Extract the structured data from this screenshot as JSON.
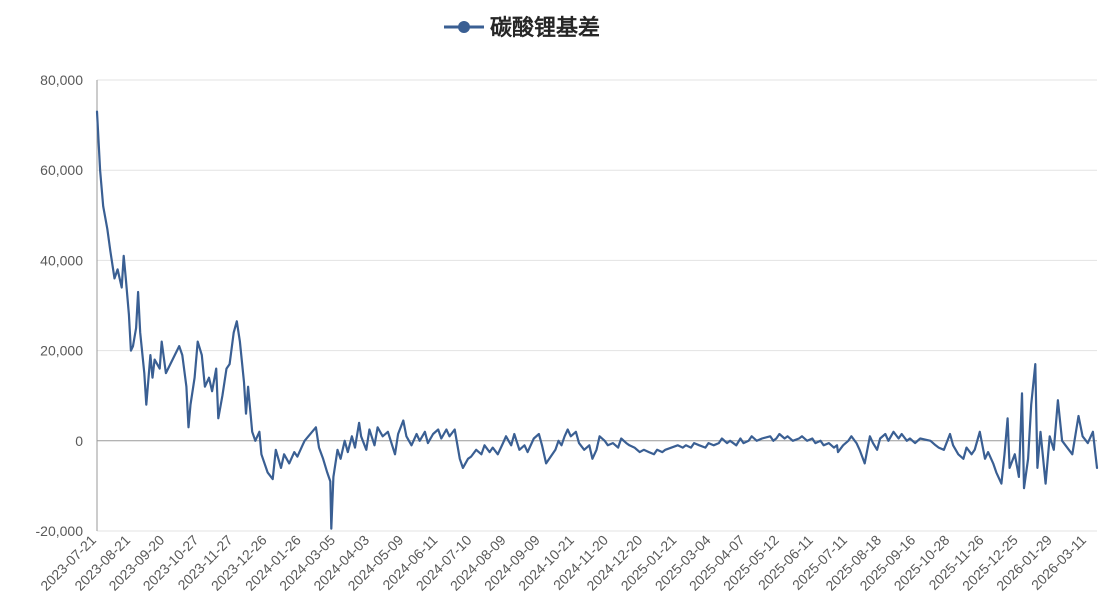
{
  "chart_data": {
    "type": "line",
    "title": "碳酸锂基差",
    "series": [
      {
        "name": "碳酸锂基差",
        "color": "#3a5f93",
        "points": [
          [
            "2023-07-21",
            73000
          ],
          [
            "2023-07-24",
            60000
          ],
          [
            "2023-07-27",
            52000
          ],
          [
            "2023-07-31",
            47000
          ],
          [
            "2023-08-03",
            42000
          ],
          [
            "2023-08-07",
            36000
          ],
          [
            "2023-08-10",
            38000
          ],
          [
            "2023-08-14",
            34000
          ],
          [
            "2023-08-16",
            41000
          ],
          [
            "2023-08-18",
            36000
          ],
          [
            "2023-08-21",
            28000
          ],
          [
            "2023-08-23",
            20000
          ],
          [
            "2023-08-25",
            21000
          ],
          [
            "2023-08-28",
            25000
          ],
          [
            "2023-08-30",
            33000
          ],
          [
            "2023-09-01",
            24000
          ],
          [
            "2023-09-05",
            15000
          ],
          [
            "2023-09-07",
            8000
          ],
          [
            "2023-09-11",
            19000
          ],
          [
            "2023-09-13",
            14000
          ],
          [
            "2023-09-15",
            18000
          ],
          [
            "2023-09-20",
            16000
          ],
          [
            "2023-09-22",
            22000
          ],
          [
            "2023-09-26",
            15000
          ],
          [
            "2023-10-09",
            21000
          ],
          [
            "2023-10-12",
            19000
          ],
          [
            "2023-10-16",
            12000
          ],
          [
            "2023-10-18",
            3000
          ],
          [
            "2023-10-20",
            8000
          ],
          [
            "2023-10-24",
            14000
          ],
          [
            "2023-10-27",
            22000
          ],
          [
            "2023-10-31",
            19000
          ],
          [
            "2023-11-03",
            12000
          ],
          [
            "2023-11-07",
            14000
          ],
          [
            "2023-11-10",
            11000
          ],
          [
            "2023-11-14",
            16000
          ],
          [
            "2023-11-16",
            5000
          ],
          [
            "2023-11-20",
            10000
          ],
          [
            "2023-11-24",
            16000
          ],
          [
            "2023-11-27",
            17000
          ],
          [
            "2023-12-01",
            24000
          ],
          [
            "2023-12-04",
            26500
          ],
          [
            "2023-12-07",
            22000
          ],
          [
            "2023-12-11",
            13000
          ],
          [
            "2023-12-13",
            6000
          ],
          [
            "2023-12-15",
            12000
          ],
          [
            "2023-12-19",
            2000
          ],
          [
            "2023-12-22",
            0
          ],
          [
            "2023-12-26",
            2000
          ],
          [
            "2023-12-28",
            -3000
          ],
          [
            "2024-01-03",
            -7000
          ],
          [
            "2024-01-08",
            -8500
          ],
          [
            "2024-01-11",
            -2000
          ],
          [
            "2024-01-16",
            -6000
          ],
          [
            "2024-01-19",
            -3000
          ],
          [
            "2024-01-24",
            -5000
          ],
          [
            "2024-01-29",
            -2500
          ],
          [
            "2024-02-01",
            -3500
          ],
          [
            "2024-02-06",
            -1000
          ],
          [
            "2024-02-08",
            0
          ],
          [
            "2024-02-19",
            3000
          ],
          [
            "2024-02-22",
            -1500
          ],
          [
            "2024-02-26",
            -4000
          ],
          [
            "2024-03-01",
            -7000
          ],
          [
            "2024-03-04",
            -9000
          ],
          [
            "2024-03-05",
            -19500
          ],
          [
            "2024-03-07",
            -8000
          ],
          [
            "2024-03-11",
            -2000
          ],
          [
            "2024-03-14",
            -4000
          ],
          [
            "2024-03-18",
            0
          ],
          [
            "2024-03-21",
            -2500
          ],
          [
            "2024-03-25",
            1000
          ],
          [
            "2024-03-28",
            -1500
          ],
          [
            "2024-04-01",
            4000
          ],
          [
            "2024-04-03",
            1000
          ],
          [
            "2024-04-08",
            -2000
          ],
          [
            "2024-04-11",
            2500
          ],
          [
            "2024-04-16",
            -1000
          ],
          [
            "2024-04-19",
            3000
          ],
          [
            "2024-04-24",
            1000
          ],
          [
            "2024-04-29",
            2000
          ],
          [
            "2024-05-06",
            -3000
          ],
          [
            "2024-05-09",
            1500
          ],
          [
            "2024-05-14",
            4500
          ],
          [
            "2024-05-17",
            1000
          ],
          [
            "2024-05-22",
            -1000
          ],
          [
            "2024-05-27",
            1500
          ],
          [
            "2024-05-30",
            0
          ],
          [
            "2024-06-04",
            2000
          ],
          [
            "2024-06-07",
            -500
          ],
          [
            "2024-06-12",
            1500
          ],
          [
            "2024-06-17",
            2500
          ],
          [
            "2024-06-20",
            500
          ],
          [
            "2024-06-25",
            2500
          ],
          [
            "2024-06-28",
            1000
          ],
          [
            "2024-07-03",
            2500
          ],
          [
            "2024-07-08",
            -4000
          ],
          [
            "2024-07-11",
            -6000
          ],
          [
            "2024-07-16",
            -4000
          ],
          [
            "2024-07-19",
            -3500
          ],
          [
            "2024-07-24",
            -2000
          ],
          [
            "2024-07-29",
            -3000
          ],
          [
            "2024-08-01",
            -1000
          ],
          [
            "2024-08-06",
            -2500
          ],
          [
            "2024-08-09",
            -1500
          ],
          [
            "2024-08-14",
            -3000
          ],
          [
            "2024-08-19",
            -500
          ],
          [
            "2024-08-22",
            1000
          ],
          [
            "2024-08-27",
            -1000
          ],
          [
            "2024-08-30",
            1500
          ],
          [
            "2024-09-04",
            -2000
          ],
          [
            "2024-09-09",
            -1000
          ],
          [
            "2024-09-12",
            -2500
          ],
          [
            "2024-09-18",
            500
          ],
          [
            "2024-09-23",
            1500
          ],
          [
            "2024-09-26",
            -1000
          ],
          [
            "2024-09-30",
            -5000
          ],
          [
            "2024-10-09",
            -2000
          ],
          [
            "2024-10-12",
            0
          ],
          [
            "2024-10-15",
            -1000
          ],
          [
            "2024-10-18",
            1000
          ],
          [
            "2024-10-21",
            2500
          ],
          [
            "2024-10-24",
            1000
          ],
          [
            "2024-10-29",
            2000
          ],
          [
            "2024-11-01",
            -500
          ],
          [
            "2024-11-06",
            -2000
          ],
          [
            "2024-11-11",
            -1000
          ],
          [
            "2024-11-14",
            -4000
          ],
          [
            "2024-11-18",
            -2000
          ],
          [
            "2024-11-21",
            1000
          ],
          [
            "2024-11-26",
            0
          ],
          [
            "2024-11-29",
            -1000
          ],
          [
            "2024-12-04",
            -500
          ],
          [
            "2024-12-09",
            -1500
          ],
          [
            "2024-12-12",
            500
          ],
          [
            "2024-12-17",
            -500
          ],
          [
            "2024-12-20",
            -1000
          ],
          [
            "2024-12-25",
            -1500
          ],
          [
            "2024-12-30",
            -2500
          ],
          [
            "2025-01-03",
            -2000
          ],
          [
            "2025-01-08",
            -2500
          ],
          [
            "2025-01-13",
            -3000
          ],
          [
            "2025-01-16",
            -2000
          ],
          [
            "2025-01-21",
            -2500
          ],
          [
            "2025-01-24",
            -2000
          ],
          [
            "2025-02-05",
            -1000
          ],
          [
            "2025-02-10",
            -1500
          ],
          [
            "2025-02-13",
            -1000
          ],
          [
            "2025-02-18",
            -1500
          ],
          [
            "2025-02-21",
            -500
          ],
          [
            "2025-02-26",
            -1000
          ],
          [
            "2025-03-04",
            -1500
          ],
          [
            "2025-03-07",
            -500
          ],
          [
            "2025-03-12",
            -1000
          ],
          [
            "2025-03-17",
            -500
          ],
          [
            "2025-03-20",
            500
          ],
          [
            "2025-03-25",
            -500
          ],
          [
            "2025-03-28",
            0
          ],
          [
            "2025-04-03",
            -1000
          ],
          [
            "2025-04-07",
            500
          ],
          [
            "2025-04-10",
            -500
          ],
          [
            "2025-04-15",
            0
          ],
          [
            "2025-04-18",
            1000
          ],
          [
            "2025-04-23",
            0
          ],
          [
            "2025-04-28",
            500
          ],
          [
            "2025-05-06",
            1000
          ],
          [
            "2025-05-09",
            0
          ],
          [
            "2025-05-12",
            500
          ],
          [
            "2025-05-15",
            1500
          ],
          [
            "2025-05-20",
            500
          ],
          [
            "2025-05-23",
            1000
          ],
          [
            "2025-05-28",
            0
          ],
          [
            "2025-06-03",
            500
          ],
          [
            "2025-06-06",
            1000
          ],
          [
            "2025-06-11",
            0
          ],
          [
            "2025-06-16",
            500
          ],
          [
            "2025-06-19",
            -500
          ],
          [
            "2025-06-24",
            0
          ],
          [
            "2025-06-27",
            -1000
          ],
          [
            "2025-07-02",
            -500
          ],
          [
            "2025-07-07",
            -1500
          ],
          [
            "2025-07-10",
            -1000
          ],
          [
            "2025-07-11",
            -2500
          ],
          [
            "2025-07-16",
            -1000
          ],
          [
            "2025-07-21",
            0
          ],
          [
            "2025-07-24",
            1000
          ],
          [
            "2025-07-29",
            -500
          ],
          [
            "2025-08-01",
            -2000
          ],
          [
            "2025-08-06",
            -5000
          ],
          [
            "2025-08-11",
            1000
          ],
          [
            "2025-08-14",
            -500
          ],
          [
            "2025-08-18",
            -2000
          ],
          [
            "2025-08-21",
            500
          ],
          [
            "2025-08-26",
            1500
          ],
          [
            "2025-08-29",
            0
          ],
          [
            "2025-09-03",
            2000
          ],
          [
            "2025-09-08",
            500
          ],
          [
            "2025-09-11",
            1500
          ],
          [
            "2025-09-16",
            0
          ],
          [
            "2025-09-19",
            500
          ],
          [
            "2025-09-24",
            -500
          ],
          [
            "2025-09-29",
            500
          ],
          [
            "2025-10-09",
            0
          ],
          [
            "2025-10-14",
            -1000
          ],
          [
            "2025-10-17",
            -1500
          ],
          [
            "2025-10-22",
            -2000
          ],
          [
            "2025-10-28",
            1500
          ],
          [
            "2025-10-31",
            -1000
          ],
          [
            "2025-11-05",
            -3000
          ],
          [
            "2025-11-10",
            -4000
          ],
          [
            "2025-11-13",
            -1500
          ],
          [
            "2025-11-18",
            -3000
          ],
          [
            "2025-11-21",
            -2000
          ],
          [
            "2025-11-26",
            2000
          ],
          [
            "2025-12-01",
            -4000
          ],
          [
            "2025-12-04",
            -2500
          ],
          [
            "2025-12-09",
            -5000
          ],
          [
            "2025-12-12",
            -7000
          ],
          [
            "2025-12-17",
            -9500
          ],
          [
            "2025-12-20",
            -3000
          ],
          [
            "2025-12-23",
            5000
          ],
          [
            "2025-12-25",
            -6000
          ],
          [
            "2025-12-30",
            -3000
          ],
          [
            "2026-01-03",
            -8000
          ],
          [
            "2026-01-06",
            10500
          ],
          [
            "2026-01-08",
            -10500
          ],
          [
            "2026-01-12",
            -4000
          ],
          [
            "2026-01-15",
            8000
          ],
          [
            "2026-01-19",
            17000
          ],
          [
            "2026-01-21",
            -6000
          ],
          [
            "2026-01-24",
            2000
          ],
          [
            "2026-01-29",
            -9500
          ],
          [
            "2026-02-02",
            1000
          ],
          [
            "2026-02-06",
            -2000
          ],
          [
            "2026-02-10",
            9000
          ],
          [
            "2026-02-14",
            0
          ],
          [
            "2026-02-24",
            -3000
          ],
          [
            "2026-03-02",
            5500
          ],
          [
            "2026-03-06",
            1000
          ],
          [
            "2026-03-11",
            -500
          ],
          [
            "2026-03-16",
            2000
          ],
          [
            "2026-03-20",
            -6000
          ]
        ]
      }
    ],
    "x_tick_labels": [
      "2023-07-21",
      "2023-08-21",
      "2023-09-20",
      "2023-10-27",
      "2023-11-27",
      "2023-12-26",
      "2024-01-26",
      "2024-03-05",
      "2024-04-03",
      "2024-05-09",
      "2024-06-11",
      "2024-07-10",
      "2024-08-09",
      "2024-09-09",
      "2024-10-21",
      "2024-11-20",
      "2024-12-20",
      "2025-01-21",
      "2025-03-04",
      "2025-04-07",
      "2025-05-12",
      "2025-06-11",
      "2025-07-11",
      "2025-08-18",
      "2025-09-16",
      "2025-10-28",
      "2025-11-26",
      "2025-12-25",
      "2026-01-29",
      "2026-03-11"
    ],
    "y_ticks": [
      80000,
      60000,
      40000,
      20000,
      0,
      -20000
    ],
    "y_tick_labels": [
      "80,000",
      "60,000",
      "40,000",
      "20,000",
      "0",
      "-20,000"
    ],
    "ylim": [
      -20000,
      80000
    ],
    "xlim": [
      "2023-07-21",
      "2026-03-20"
    ],
    "grid": true,
    "legend_position": "top"
  }
}
